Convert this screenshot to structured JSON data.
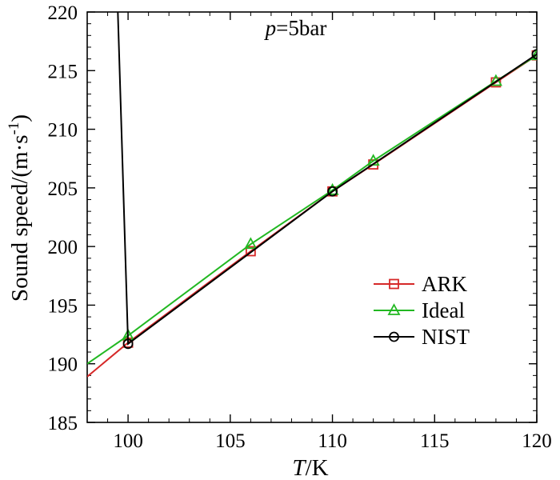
{
  "chart_data": {
    "type": "line",
    "annotation": {
      "italic": "p",
      "rest": "=5bar"
    },
    "xlabel": {
      "italic": "T",
      "rest": "/K"
    },
    "ylabel": {
      "main": "Sound speed/(m·s",
      "sup": "-1",
      "tail": ")"
    },
    "xlim": [
      98,
      120
    ],
    "ylim": [
      185,
      220
    ],
    "xticks": [
      100,
      105,
      110,
      115,
      120
    ],
    "yticks": [
      185,
      190,
      195,
      200,
      205,
      210,
      215,
      220
    ],
    "legend_position": "lower-right",
    "grid": false,
    "series": [
      {
        "name": "ARK",
        "color": "#d62828",
        "marker": "square",
        "x": [
          98,
          100,
          106,
          110,
          112,
          118,
          120
        ],
        "y": [
          188.9,
          191.8,
          199.6,
          204.7,
          207.0,
          214.0,
          216.3
        ],
        "marker_x": [
          100,
          106,
          110,
          112,
          118,
          120
        ],
        "marker_y": [
          191.8,
          199.6,
          204.7,
          207.0,
          214.0,
          216.3
        ]
      },
      {
        "name": "Ideal",
        "color": "#22b822",
        "marker": "triangle",
        "x": [
          98,
          100,
          106,
          110,
          112,
          118,
          120
        ],
        "y": [
          190.0,
          192.4,
          200.2,
          204.8,
          207.3,
          214.1,
          216.3
        ],
        "marker_x": [
          100,
          106,
          110,
          112,
          118,
          120
        ],
        "marker_y": [
          192.4,
          200.2,
          204.8,
          207.3,
          214.1,
          216.3
        ]
      },
      {
        "name": "NIST",
        "color": "#000000",
        "marker": "circle",
        "x": [
          99.5,
          100,
          110,
          120
        ],
        "y": [
          220,
          191.7,
          204.7,
          216.4
        ],
        "marker_x": [
          100,
          110,
          120
        ],
        "marker_y": [
          191.7,
          204.7,
          216.4
        ]
      }
    ]
  }
}
